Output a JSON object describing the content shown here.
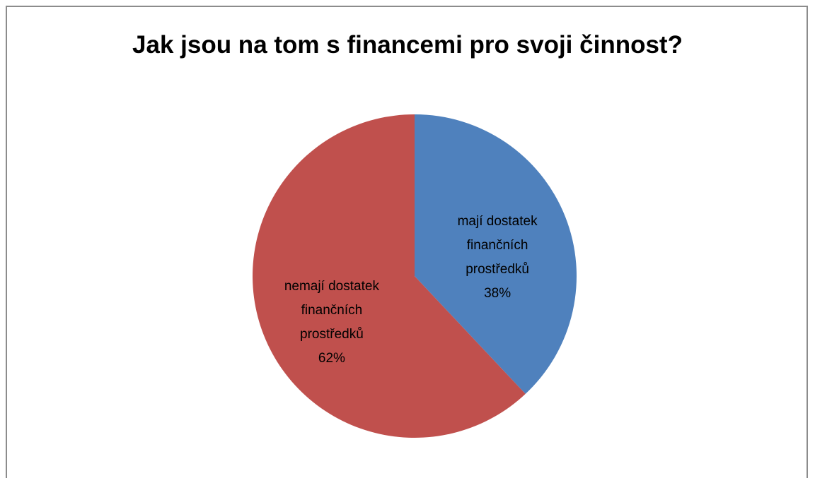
{
  "chart_data": {
    "type": "pie",
    "title": "Jak jsou na tom s financemi pro svoji činnost?",
    "categories": [
      "mají dostatek finančních prostředků",
      "nemají dostatek finančních prostředků"
    ],
    "values": [
      38,
      62
    ],
    "value_labels": [
      "38%",
      "62%"
    ],
    "colors": [
      "#4f81bd",
      "#c0504d"
    ]
  }
}
